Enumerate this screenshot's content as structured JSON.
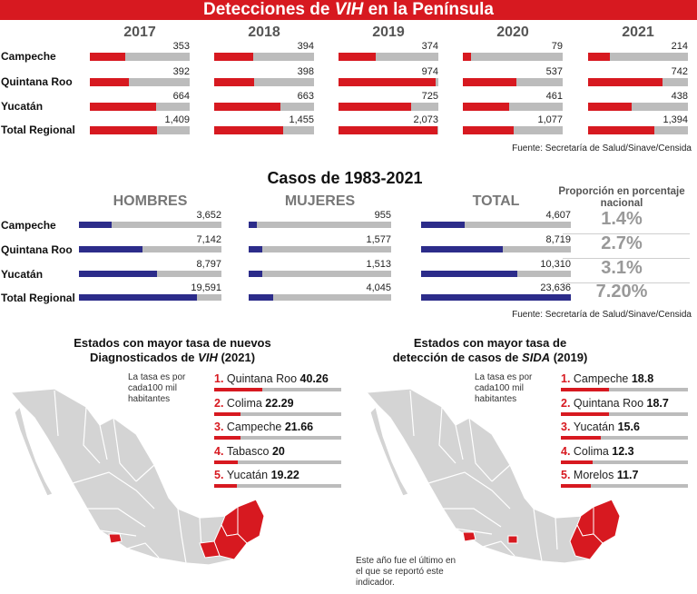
{
  "banner": {
    "pre": "Detecciones de ",
    "em": "VIH",
    "post": " en la Península"
  },
  "detections": {
    "years": [
      "2017",
      "2018",
      "2019",
      "2020",
      "2021"
    ],
    "rows": [
      "Campeche",
      "Quintana Roo",
      "Yucatán",
      "Total Regional"
    ],
    "values": [
      [
        "353",
        "394",
        "374",
        "79",
        "214"
      ],
      [
        "392",
        "398",
        "974",
        "537",
        "742"
      ],
      [
        "664",
        "663",
        "725",
        "461",
        "438"
      ],
      [
        "1,409",
        "1,455",
        "2,073",
        "1,077",
        "1,394"
      ]
    ],
    "source": "Fuente: Secretaría de Salud/Sinave/Censida"
  },
  "cases": {
    "title": "Casos de 1983-2021",
    "columns": [
      "HOMBRES",
      "MUJERES",
      "TOTAL"
    ],
    "proportion_header": "Proporción en porcentaje nacional",
    "rows": [
      "Campeche",
      "Quintana Roo",
      "Yucatán",
      "Total Regional"
    ],
    "values": [
      [
        "3,652",
        "955",
        "4,607"
      ],
      [
        "7,142",
        "1,577",
        "8,719"
      ],
      [
        "8,797",
        "1,513",
        "10,310"
      ],
      [
        "19,591",
        "4,045",
        "23,636"
      ]
    ],
    "proportions": [
      "1.4%",
      "2.7%",
      "3.1%",
      "7.20%"
    ],
    "source": "Fuente: Secretaría de Salud/Sinave/Censida"
  },
  "vih_rank": {
    "title_line1": "Estados con mayor tasa de nuevos",
    "title_pre": "Diagnosticados de ",
    "title_em": "VIH",
    "title_post": " (2021)",
    "note": "La tasa es por cada100 mil habitantes",
    "items": [
      {
        "num": "1.",
        "state": "Quintana Roo",
        "value": "40.26"
      },
      {
        "num": "2.",
        "state": "Colima",
        "value": "22.29"
      },
      {
        "num": "3.",
        "state": "Campeche",
        "value": "21.66"
      },
      {
        "num": "4.",
        "state": "Tabasco",
        "value": "20"
      },
      {
        "num": "5.",
        "state": "Yucatán",
        "value": "19.22"
      }
    ]
  },
  "sida_rank": {
    "title_line1": "Estados con mayor tasa de",
    "title_pre": "detección de casos de ",
    "title_em": "SIDA",
    "title_post": " (2019)",
    "note": "La tasa es por cada100 mil habitantes",
    "footnote": "Este año fue el último en el que se reportó este indicador.",
    "items": [
      {
        "num": "1.",
        "state": "Campeche",
        "value": "18.8"
      },
      {
        "num": "2.",
        "state": "Quintana Roo",
        "value": "18.7"
      },
      {
        "num": "3.",
        "state": "Yucatán",
        "value": "15.6"
      },
      {
        "num": "4.",
        "state": "Colima",
        "value": "12.3"
      },
      {
        "num": "5.",
        "state": "Morelos",
        "value": "11.7"
      }
    ]
  },
  "chart_data": [
    {
      "type": "bar",
      "title": "Detecciones de VIH en la Península",
      "categories": [
        "2017",
        "2018",
        "2019",
        "2020",
        "2021"
      ],
      "series": [
        {
          "name": "Campeche",
          "values": [
            353,
            394,
            374,
            79,
            214
          ]
        },
        {
          "name": "Quintana Roo",
          "values": [
            392,
            398,
            974,
            537,
            742
          ]
        },
        {
          "name": "Yucatán",
          "values": [
            664,
            663,
            725,
            461,
            438
          ]
        },
        {
          "name": "Total Regional",
          "values": [
            1409,
            1455,
            2073,
            1077,
            1394
          ]
        }
      ],
      "colors": {
        "bar": "#d71920",
        "track": "#bcbcbc"
      }
    },
    {
      "type": "bar",
      "title": "Casos de 1983-2021",
      "categories": [
        "Campeche",
        "Quintana Roo",
        "Yucatán",
        "Total Regional"
      ],
      "series": [
        {
          "name": "HOMBRES",
          "values": [
            3652,
            7142,
            8797,
            19591
          ]
        },
        {
          "name": "MUJERES",
          "values": [
            955,
            1577,
            1513,
            4045
          ]
        },
        {
          "name": "TOTAL",
          "values": [
            4607,
            8719,
            10310,
            23636
          ]
        }
      ],
      "colors": {
        "bar": "#2c2c8a",
        "track": "#bcbcbc"
      }
    },
    {
      "type": "bar",
      "title": "Estados con mayor tasa de nuevos Diagnosticados de VIH (2021)",
      "categories": [
        "Quintana Roo",
        "Colima",
        "Campeche",
        "Tabasco",
        "Yucatán"
      ],
      "values": [
        40.26,
        22.29,
        21.66,
        20,
        19.22
      ]
    },
    {
      "type": "bar",
      "title": "Estados con mayor tasa de detección de casos de SIDA (2019)",
      "categories": [
        "Campeche",
        "Quintana Roo",
        "Yucatán",
        "Colima",
        "Morelos"
      ],
      "values": [
        18.8,
        18.7,
        15.6,
        12.3,
        11.7
      ]
    }
  ],
  "colors": {
    "accent": "#d71920",
    "navy": "#2c2c8a",
    "track": "#bcbcbc",
    "map_fill": "#d4d4d4",
    "map_stroke": "#ffffff"
  }
}
